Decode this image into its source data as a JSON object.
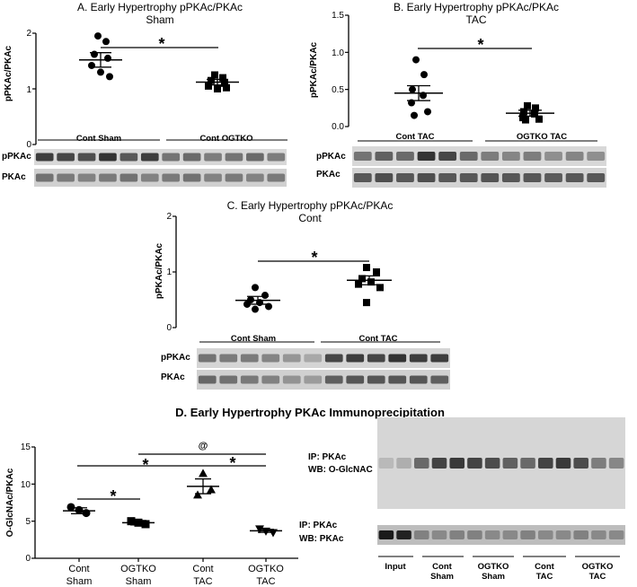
{
  "panels": [
    {
      "id": "A",
      "title_line1": "A. Early Hypertrophy pPKAc/PKAc",
      "title_line2": "Sham",
      "ylabel": "pPKAc/PKAc",
      "yticks": [
        "0",
        "1",
        "2"
      ],
      "ylim": [
        0,
        2
      ],
      "groups": [
        {
          "label": "Cont Sham",
          "marker": "circle",
          "mean": 1.52,
          "sem": 0.13,
          "values": [
            1.95,
            1.85,
            1.62,
            1.55,
            1.42,
            1.3,
            1.22
          ]
        },
        {
          "label": "Cont OGTKO",
          "marker": "square",
          "mean": 1.12,
          "sem": 0.05,
          "values": [
            1.25,
            1.2,
            1.15,
            1.1,
            1.05,
            1.0,
            1.02
          ]
        }
      ],
      "significance": "*",
      "blots": [
        "pPKAc",
        "PKAc"
      ]
    },
    {
      "id": "B",
      "title_line1": "B. Early Hypertrophy pPKAc/PKAc",
      "title_line2": "TAC",
      "ylabel": "pPKAc/PKAc",
      "yticks": [
        "0.0",
        "0.5",
        "1.0",
        "1.5"
      ],
      "ylim": [
        0,
        1.5
      ],
      "groups": [
        {
          "label": "Cont TAC",
          "marker": "circle",
          "mean": 0.45,
          "sem": 0.1,
          "values": [
            0.9,
            0.7,
            0.5,
            0.42,
            0.32,
            0.2,
            0.15
          ]
        },
        {
          "label": "OGTKO TAC",
          "marker": "square",
          "mean": 0.18,
          "sem": 0.04,
          "values": [
            0.28,
            0.25,
            0.2,
            0.17,
            0.12,
            0.1,
            0.09
          ]
        }
      ],
      "significance": "*",
      "blots": [
        "pPKAc",
        "PKAc"
      ]
    },
    {
      "id": "C",
      "title_line1": "C. Early Hypertrophy pPKAc/PKAc",
      "title_line2": "Cont",
      "ylabel": "pPKAc/PKAc",
      "yticks": [
        "0",
        "1",
        "2"
      ],
      "ylim": [
        0,
        2
      ],
      "groups": [
        {
          "label": "Cont Sham",
          "marker": "circle",
          "mean": 0.49,
          "sem": 0.07,
          "values": [
            0.72,
            0.58,
            0.5,
            0.45,
            0.42,
            0.38,
            0.33
          ]
        },
        {
          "label": "Cont TAC",
          "marker": "square",
          "mean": 0.85,
          "sem": 0.08,
          "values": [
            1.08,
            1.0,
            0.88,
            0.82,
            0.78,
            0.72,
            0.45
          ]
        }
      ],
      "significance": "*",
      "blots": [
        "pPKAc",
        "PKAc"
      ]
    }
  ],
  "panel_d": {
    "title": "D. Early Hypertrophy PKAc Immunoprecipitation",
    "ylabel": "O-GlcNAc/PKAc",
    "yticks": [
      "0",
      "5",
      "10",
      "15"
    ],
    "ylim": [
      0,
      15
    ],
    "categories": [
      {
        "line1": "Cont",
        "line2": "Sham",
        "marker": "circle",
        "mean": 6.4,
        "sem": 0.4,
        "values": [
          6.9,
          6.5,
          6.1
        ]
      },
      {
        "line1": "OGTKO",
        "line2": "Sham",
        "marker": "square",
        "mean": 4.8,
        "sem": 0.3,
        "values": [
          5.0,
          4.8,
          4.6
        ]
      },
      {
        "line1": "Cont",
        "line2": "TAC",
        "marker": "triangle-up",
        "mean": 9.7,
        "sem": 1.0,
        "values": [
          11.4,
          9.2,
          8.5
        ]
      },
      {
        "line1": "OGTKO",
        "line2": "TAC",
        "marker": "triangle-down",
        "mean": 3.7,
        "sem": 0.2,
        "values": [
          4.0,
          3.7,
          3.5
        ]
      }
    ],
    "comparisons": [
      {
        "label": "*",
        "from": 0,
        "to": 1
      },
      {
        "label": "*",
        "from": 0,
        "to": 3
      },
      {
        "label": "*",
        "from": 2,
        "to": 3
      },
      {
        "label": "@",
        "from": 1,
        "to": 3
      }
    ],
    "blot_upper_ip": "IP: PKAc",
    "blot_upper_wb": "WB: O-GlcNAC",
    "blot_lower_ip": "IP:   PKAc",
    "blot_lower_wb": "WB: PKAc",
    "lane_groups": [
      {
        "line1": "Input",
        "line2": ""
      },
      {
        "line1": "Cont",
        "line2": "Sham"
      },
      {
        "line1": "OGTKO",
        "line2": "Sham"
      },
      {
        "line1": "Cont",
        "line2": "TAC"
      },
      {
        "line1": "OGTKO",
        "line2": "TAC"
      }
    ]
  },
  "chart_data": [
    {
      "type": "scatter",
      "title": "A. Early Hypertrophy pPKAc/PKAc Sham",
      "ylabel": "pPKAc/PKAc",
      "ylim": [
        0,
        2
      ],
      "categories": [
        "Cont Sham",
        "Cont OGTKO"
      ],
      "series": [
        {
          "name": "Cont Sham",
          "values": [
            1.95,
            1.85,
            1.62,
            1.55,
            1.42,
            1.3,
            1.22
          ],
          "mean": 1.52,
          "sem": 0.13
        },
        {
          "name": "Cont OGTKO",
          "values": [
            1.25,
            1.2,
            1.15,
            1.1,
            1.05,
            1.0,
            1.02
          ],
          "mean": 1.12,
          "sem": 0.05
        }
      ]
    },
    {
      "type": "scatter",
      "title": "B. Early Hypertrophy pPKAc/PKAc TAC",
      "ylabel": "pPKAc/PKAc",
      "ylim": [
        0,
        1.5
      ],
      "categories": [
        "Cont TAC",
        "OGTKO TAC"
      ],
      "series": [
        {
          "name": "Cont TAC",
          "values": [
            0.9,
            0.7,
            0.5,
            0.42,
            0.32,
            0.2,
            0.15
          ],
          "mean": 0.45,
          "sem": 0.1
        },
        {
          "name": "OGTKO TAC",
          "values": [
            0.28,
            0.25,
            0.2,
            0.17,
            0.12,
            0.1,
            0.09
          ],
          "mean": 0.18,
          "sem": 0.04
        }
      ]
    },
    {
      "type": "scatter",
      "title": "C. Early Hypertrophy pPKAc/PKAc Cont",
      "ylabel": "pPKAc/PKAc",
      "ylim": [
        0,
        2
      ],
      "categories": [
        "Cont Sham",
        "Cont TAC"
      ],
      "series": [
        {
          "name": "Cont Sham",
          "values": [
            0.72,
            0.58,
            0.5,
            0.45,
            0.42,
            0.38,
            0.33
          ],
          "mean": 0.49,
          "sem": 0.07
        },
        {
          "name": "Cont TAC",
          "values": [
            1.08,
            1.0,
            0.88,
            0.82,
            0.78,
            0.72,
            0.45
          ],
          "mean": 0.85,
          "sem": 0.08
        }
      ]
    },
    {
      "type": "scatter",
      "title": "D. Early Hypertrophy PKAc Immunoprecipitation",
      "ylabel": "O-GlcNAc/PKAc",
      "ylim": [
        0,
        15
      ],
      "categories": [
        "Cont Sham",
        "OGTKO Sham",
        "Cont TAC",
        "OGTKO TAC"
      ],
      "series": [
        {
          "name": "Cont Sham",
          "values": [
            6.9,
            6.5,
            6.1
          ],
          "mean": 6.4,
          "sem": 0.4
        },
        {
          "name": "OGTKO Sham",
          "values": [
            5.0,
            4.8,
            4.6
          ],
          "mean": 4.8,
          "sem": 0.3
        },
        {
          "name": "Cont TAC",
          "values": [
            11.4,
            9.2,
            8.5
          ],
          "mean": 9.7,
          "sem": 1.0
        },
        {
          "name": "OGTKO TAC",
          "values": [
            4.0,
            3.7,
            3.5
          ],
          "mean": 3.7,
          "sem": 0.2
        }
      ]
    }
  ]
}
